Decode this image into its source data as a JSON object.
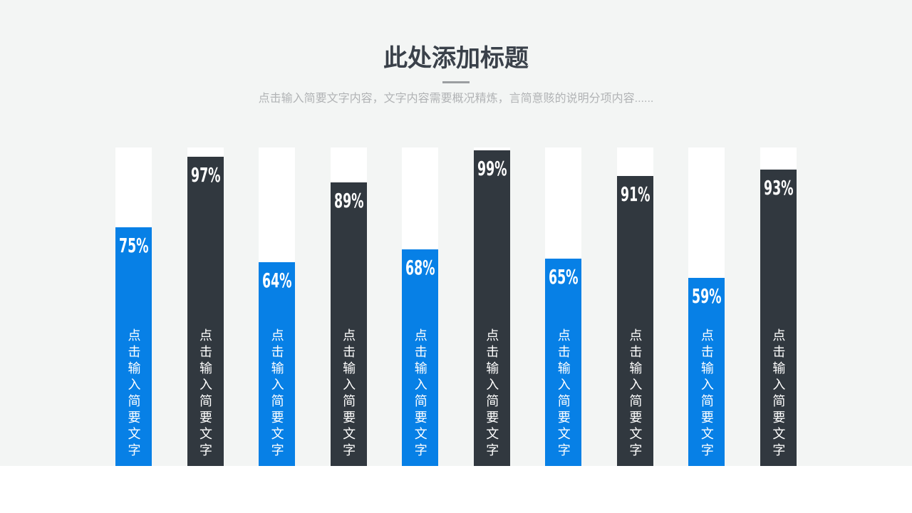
{
  "slide": {
    "title": "此处添加标题",
    "subtitle": "点击输入简要文字内容，文字内容需要概况精炼，言简意赅的说明分项内容......"
  },
  "chart_data": {
    "type": "bar",
    "orientation": "vertical",
    "values": [
      75,
      97,
      64,
      89,
      68,
      99,
      65,
      91,
      59,
      93
    ],
    "labels": [
      "75%",
      "97%",
      "64%",
      "89%",
      "68%",
      "99%",
      "65%",
      "91%",
      "59%",
      "93%"
    ],
    "bar_labels": [
      "点击输入简要文字",
      "点击输入简要文字",
      "点击输入简要文字",
      "点击输入简要文字",
      "点击输入简要文字",
      "点击输入简要文字",
      "点击输入简要文字",
      "点击输入简要文字",
      "点击输入简要文字",
      "点击输入简要文字"
    ],
    "ylim": [
      0,
      100
    ],
    "value_suffix": "%",
    "grid": false,
    "legend": "none",
    "colors": {
      "odd_bars": "#0780e6",
      "even_bars": "#31383f",
      "track": "#ffffff",
      "value_text": "#ffffff"
    }
  },
  "colors": {
    "slide_background": "#f3f5f4",
    "lower_background": "#ffffff",
    "title": "#3a414a",
    "divider": "#9b9ea1",
    "subtitle": "#b1b3b5"
  }
}
